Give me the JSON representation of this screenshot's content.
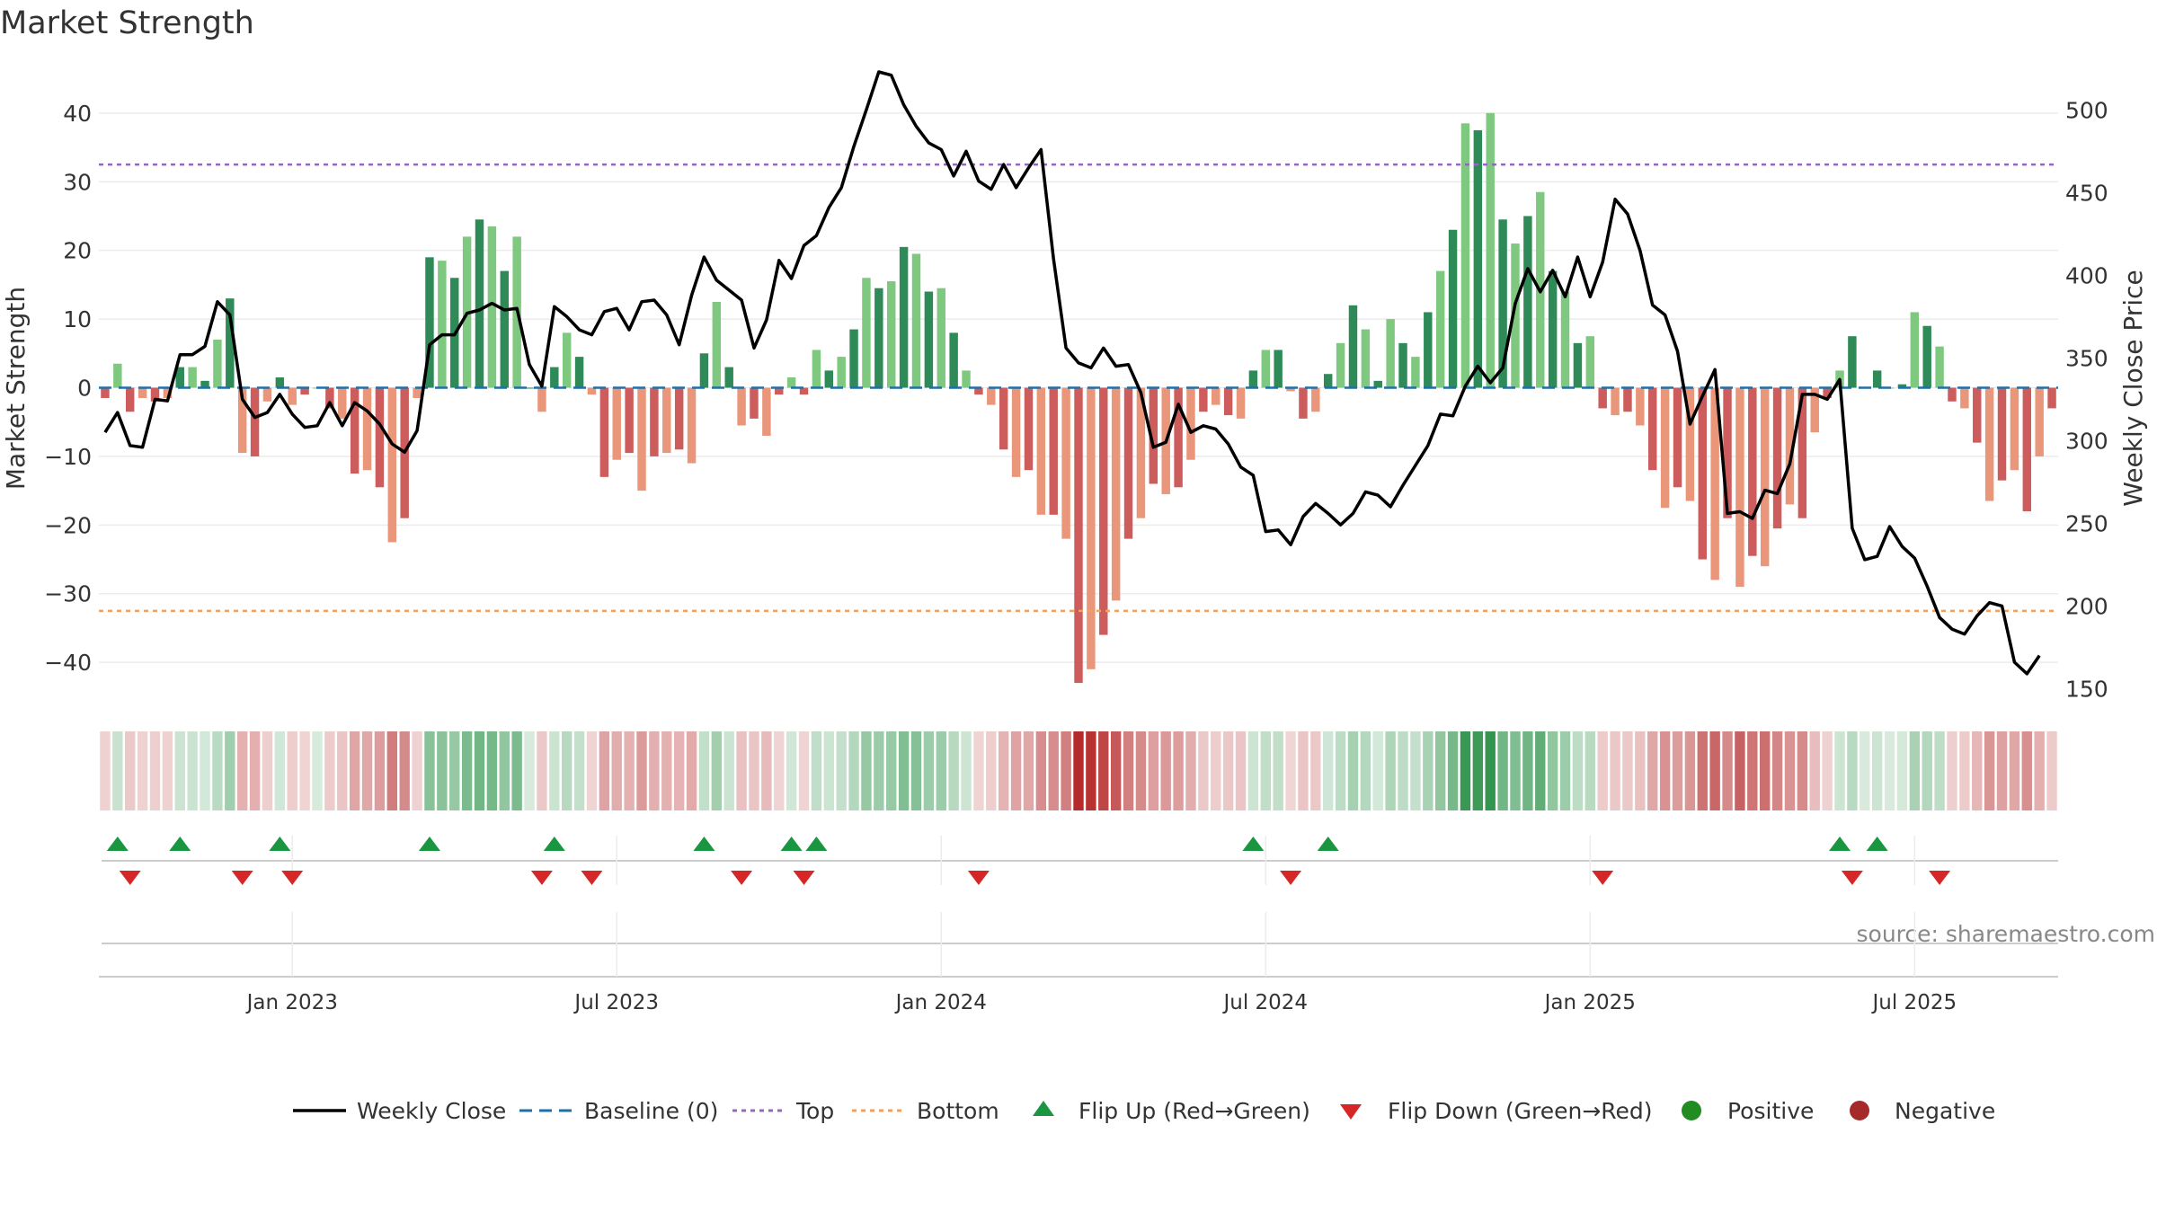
{
  "chart_data": {
    "type": "bar",
    "title": "Market Strength",
    "ylabel_left": "Market Strength",
    "ylabel_right": "Weekly Close Price",
    "source": "source: sharemaestro.com",
    "ylim_left": [
      -46,
      46
    ],
    "ylim_right": [
      141,
      523
    ],
    "yticks_left": [
      "40",
      "30",
      "20",
      "10",
      "0",
      "−10",
      "−20",
      "−30",
      "−40"
    ],
    "yticks_left_values": [
      40,
      30,
      20,
      10,
      0,
      -10,
      -20,
      -30,
      -40
    ],
    "yticks_right": [
      "500",
      "450",
      "400",
      "350",
      "300",
      "250",
      "200",
      "150"
    ],
    "yticks_right_values": [
      500,
      450,
      400,
      350,
      300,
      250,
      200,
      150
    ],
    "xticks": [
      "Jan 2023",
      "Jul 2023",
      "Jan 2024",
      "Jul 2024",
      "Jan 2025",
      "Jul 2025"
    ],
    "xticks_week_index": [
      15,
      41,
      67,
      93,
      119,
      145
    ],
    "top_line": 32.5,
    "bottom_line": -32.5,
    "strength": [
      -1.5,
      3.5,
      -3.5,
      -1.5,
      -2,
      -1.5,
      3,
      3,
      1,
      7,
      13,
      -9.5,
      -10,
      -2,
      1.5,
      -2.5,
      -1,
      0,
      -3,
      -4.5,
      -12.5,
      -12,
      -14.5,
      -22.5,
      -19,
      -1.5,
      19,
      18.5,
      16,
      22,
      24.5,
      23.5,
      17,
      22,
      0,
      -3.5,
      3,
      8,
      4.5,
      -1,
      -13,
      -10.5,
      -9.5,
      -15,
      -10,
      -9.5,
      -9,
      -11,
      5,
      12.5,
      3,
      -5.5,
      -4.5,
      -7,
      -1,
      1.5,
      -1,
      5.5,
      2.5,
      4.5,
      8.5,
      16,
      14.5,
      15.5,
      20.5,
      19.5,
      14,
      14.5,
      8,
      2.5,
      -1,
      -2.5,
      -9,
      -13,
      -12,
      -18.5,
      -18.5,
      -22,
      -43,
      -41,
      -36,
      -31,
      -22,
      -19,
      -14,
      -15.5,
      -14.5,
      -10.5,
      -3.5,
      -2.5,
      -4,
      -4.5,
      2.5,
      5.5,
      5.5,
      -0.5,
      -4.5,
      -3.5,
      2,
      6.5,
      12,
      8.5,
      1,
      10,
      6.5,
      4.5,
      11,
      17,
      23,
      38.5,
      37.5,
      40,
      24.5,
      21,
      25,
      28.5,
      17,
      14,
      6.5,
      7.5,
      -3,
      -4,
      -3.5,
      -5.5,
      -12,
      -17.5,
      -14.5,
      -16.5,
      -25,
      -28,
      -19,
      -29,
      -24.5,
      -26,
      -20.5,
      -17,
      -19,
      -6.5,
      -1.5,
      2.5,
      7.5,
      0,
      2.5,
      0,
      0.5,
      11,
      9,
      6,
      -2,
      -3,
      -8,
      -16.5,
      -13.5,
      -12,
      -18,
      -10,
      -3
    ],
    "weekly_close": [
      305,
      317,
      297,
      296,
      325,
      324,
      352,
      352,
      357,
      384,
      376,
      325,
      314,
      317,
      328,
      316,
      308,
      309,
      323,
      309,
      323,
      318,
      310,
      298,
      293,
      306,
      358,
      364,
      364,
      377,
      379,
      383,
      379,
      380,
      346,
      333,
      381,
      375,
      367,
      364,
      378,
      380,
      367,
      384,
      385,
      376,
      358,
      388,
      411,
      397,
      391,
      385,
      356,
      373,
      409,
      398,
      418,
      424,
      441,
      453,
      478,
      500,
      523,
      521,
      503,
      490,
      480,
      476,
      460,
      475,
      457,
      452,
      467,
      453,
      465,
      476,
      410,
      356,
      347,
      344,
      356,
      345,
      346,
      329,
      296,
      299,
      322,
      305,
      309,
      307,
      298,
      284,
      279,
      245,
      246,
      237,
      254,
      262,
      256,
      249,
      256,
      269,
      267,
      260,
      273,
      285,
      297,
      316,
      315,
      333,
      345,
      335,
      344,
      383,
      404,
      390,
      403,
      387,
      411,
      387,
      408,
      446,
      437,
      415,
      382,
      376,
      354,
      310,
      327,
      343,
      256,
      257,
      253,
      270,
      268,
      286,
      328,
      328,
      325,
      337,
      247,
      228,
      230,
      248,
      236,
      229,
      212,
      193,
      186,
      183,
      194,
      202,
      200,
      166,
      159,
      170
    ],
    "bands": {
      "positive_color": "#1e8a3c",
      "negative_color": "#b22222",
      "note": "colour strip shading proportional to market strength"
    },
    "flips_up_week_index": [
      1,
      6,
      14,
      26,
      36,
      48,
      55,
      57,
      92,
      98,
      139,
      142
    ],
    "flips_down_week_index": [
      2,
      11,
      15,
      35,
      39,
      51,
      56,
      70,
      95,
      120,
      140,
      147
    ],
    "legend": {
      "weekly_close": "Weekly Close",
      "baseline": "Baseline (0)",
      "top": "Top",
      "bottom": "Bottom",
      "flip_up": "Flip Up (Red→Green)",
      "flip_down": "Flip Down (Green→Red)",
      "positive": "Positive",
      "negative": "Negative"
    },
    "colors": {
      "pos_dark": "#2e8b57",
      "pos_light": "#7fc87f",
      "neg_dark": "#cd5c5c",
      "neg_light": "#e9967a",
      "close_line": "#000000",
      "baseline": "#1f6fa8",
      "top_line": "#9467bd",
      "bottom_line": "#f0a060",
      "flip_up": "#1a9641",
      "flip_down": "#d62728",
      "positive_dot": "#228b22",
      "negative_dot": "#a52a2a",
      "grid": "#ececec",
      "axis_text": "#333333",
      "source_text": "#888888"
    }
  }
}
